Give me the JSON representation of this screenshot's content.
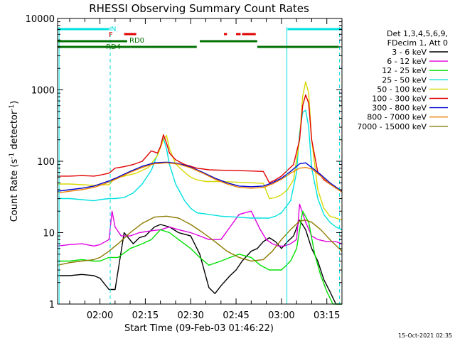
{
  "chart_data": {
    "type": "line",
    "title": "RHESSI Observing Summary Count Rates",
    "xlabel": "Start Time (09-Feb-03 01:46:22)",
    "ylabel": "Count Rate (s",
    "ylabel_sup": "-1",
    "ylabel_tail": " detector",
    "ylabel_sup2": "-1",
    "ylabel_close": ")",
    "yscale": "log",
    "ylim": [
      1,
      10000
    ],
    "xlim_minutes": [
      106,
      200
    ],
    "xticks": [
      {
        "minute": 120,
        "label": "02:00"
      },
      {
        "minute": 135,
        "label": "02:15"
      },
      {
        "minute": 150,
        "label": "02:30"
      },
      {
        "minute": 165,
        "label": "02:45"
      },
      {
        "minute": 180,
        "label": "03:00"
      },
      {
        "minute": 195,
        "label": "03:15"
      }
    ],
    "yticks": [
      {
        "value": 1,
        "label": "1"
      },
      {
        "value": 10,
        "label": "10"
      },
      {
        "value": 100,
        "label": "100"
      },
      {
        "value": 1000,
        "label": "1000"
      },
      {
        "value": 10000,
        "label": "10000"
      }
    ],
    "legend_header": [
      "Det 1,3,4,5,6,9,",
      "FDecim 1, Att 0"
    ],
    "legend_position": "right",
    "series": [
      {
        "name": "3 - 6 keV",
        "color": "#000000",
        "minutes": [
          106,
          110,
          114,
          118,
          120,
          123,
          125,
          128,
          131,
          133,
          135,
          138,
          140,
          143,
          146,
          150,
          153,
          156,
          158,
          160,
          163,
          165,
          167,
          170,
          172,
          174,
          176,
          178,
          180,
          182,
          184,
          186,
          188,
          190,
          192,
          194,
          196,
          198,
          200
        ],
        "values": [
          2.5,
          2.5,
          2.6,
          2.5,
          2.3,
          1.6,
          1.6,
          10.0,
          7.0,
          8.5,
          9.0,
          12.0,
          13.0,
          12.0,
          10.0,
          9.0,
          5.0,
          1.7,
          1.4,
          1.8,
          2.5,
          3.0,
          4.0,
          5.5,
          6.0,
          7.5,
          8.5,
          7.5,
          6.0,
          7.5,
          9.0,
          15.0,
          11.0,
          6.0,
          4.0,
          2.2,
          1.5,
          1.0,
          1.0
        ]
      },
      {
        "name": "6 - 12 keV",
        "color": "#e000e0",
        "minutes": [
          106,
          110,
          114,
          118,
          120,
          123,
          124,
          125,
          127,
          130,
          133,
          136,
          140,
          143,
          146,
          150,
          153,
          156,
          160,
          163,
          166,
          170,
          173,
          175,
          177,
          179,
          181,
          183,
          185,
          186,
          188,
          190,
          192,
          195,
          198,
          200
        ],
        "values": [
          6.5,
          6.8,
          7.0,
          6.5,
          6.8,
          8.0,
          20.0,
          12.0,
          9.0,
          9.0,
          10.0,
          10.5,
          11.0,
          12.0,
          11.0,
          10.0,
          9.0,
          8.0,
          8.0,
          12.0,
          18.0,
          20.0,
          11.0,
          8.0,
          7.0,
          6.5,
          6.5,
          7.0,
          8.0,
          25.0,
          14.0,
          9.0,
          8.0,
          7.5,
          7.5,
          7.0
        ]
      },
      {
        "name": "12 - 25 keV",
        "color": "#00e000",
        "minutes": [
          106,
          110,
          114,
          118,
          120,
          123,
          126,
          130,
          134,
          137,
          140,
          143,
          146,
          150,
          153,
          156,
          160,
          163,
          166,
          170,
          173,
          176,
          180,
          183,
          185,
          187,
          189,
          191,
          193,
          195,
          197,
          199,
          200
        ],
        "values": [
          4.0,
          4.0,
          4.2,
          4.0,
          4.0,
          4.5,
          4.5,
          6.0,
          7.0,
          8.0,
          11.0,
          10.0,
          8.0,
          6.0,
          4.5,
          3.5,
          4.0,
          4.5,
          5.0,
          4.5,
          3.5,
          3.0,
          3.0,
          4.0,
          6.0,
          20.0,
          14.0,
          5.0,
          2.5,
          1.5,
          1.0,
          1.0,
          1.0
        ]
      },
      {
        "name": "25 - 50 keV",
        "color": "#00e0e0",
        "minutes": [
          106,
          110,
          114,
          118,
          120,
          123,
          125,
          128,
          131,
          134,
          137,
          140,
          141,
          142,
          143,
          145,
          148,
          150,
          152,
          156,
          160,
          165,
          170,
          174,
          176,
          178,
          180,
          183,
          185,
          186,
          187,
          188,
          189,
          190,
          192,
          194,
          196,
          198,
          200
        ],
        "values": [
          30.0,
          30.0,
          29.0,
          28.0,
          29.0,
          30.0,
          30.0,
          31.0,
          36.0,
          48.0,
          75.0,
          160.0,
          210.0,
          150.0,
          90.0,
          48.0,
          28.0,
          22.0,
          19.0,
          18.0,
          17.0,
          16.5,
          16.0,
          16.0,
          16.0,
          17.0,
          19.0,
          28.0,
          70.0,
          250.0,
          480.0,
          520.0,
          300.0,
          80.0,
          30.0,
          18.0,
          14.0,
          12.0,
          11.0
        ]
      },
      {
        "name": "50 - 100 keV",
        "color": "#d8d800",
        "minutes": [
          106,
          110,
          114,
          118,
          120,
          123,
          125,
          128,
          132,
          136,
          139,
          141,
          142,
          143,
          145,
          148,
          150,
          152,
          155,
          160,
          165,
          170,
          174,
          176,
          178,
          180,
          182,
          184,
          186,
          187,
          188,
          189,
          190,
          192,
          194,
          196,
          198,
          200
        ],
        "values": [
          48.0,
          48.0,
          47.0,
          46.0,
          47.0,
          47.0,
          58.0,
          62.0,
          68.0,
          82.0,
          120.0,
          200.0,
          230.0,
          150.0,
          92.0,
          70.0,
          60.0,
          55.0,
          52.0,
          52.0,
          51.0,
          50.0,
          49.0,
          30.0,
          31.0,
          34.0,
          40.0,
          55.0,
          200.0,
          800.0,
          1300.0,
          900.0,
          200.0,
          40.0,
          22.0,
          17.0,
          16.0,
          15.0
        ]
      },
      {
        "name": "100 - 300 keV",
        "color": "#e00000",
        "minutes": [
          106,
          110,
          114,
          118,
          120,
          123,
          125,
          128,
          131,
          134,
          137,
          139,
          140,
          141,
          142,
          143,
          145,
          148,
          150,
          152,
          156,
          160,
          165,
          170,
          174,
          176,
          178,
          180,
          182,
          184,
          186,
          187,
          188,
          189,
          190,
          192,
          194,
          196,
          198,
          200
        ],
        "values": [
          62.0,
          62.0,
          63.0,
          62.0,
          64.0,
          68.0,
          80.0,
          84.0,
          90.0,
          100.0,
          140.0,
          130.0,
          160.0,
          235.0,
          180.0,
          130.0,
          105.0,
          90.0,
          85.0,
          80.0,
          76.0,
          75.0,
          74.0,
          73.0,
          72.0,
          50.0,
          55.0,
          62.0,
          75.0,
          90.0,
          200.0,
          600.0,
          850.0,
          650.0,
          200.0,
          70.0,
          55.0,
          48.0,
          42.0,
          38.0
        ]
      },
      {
        "name": "300 - 800 keV",
        "color": "#0000d0",
        "minutes": [
          106,
          110,
          114,
          118,
          120,
          123,
          126,
          130,
          134,
          138,
          142,
          146,
          150,
          154,
          158,
          162,
          166,
          170,
          174,
          177,
          180,
          183,
          186,
          188,
          190,
          193,
          196,
          200
        ],
        "values": [
          38.0,
          40.0,
          42.0,
          45.0,
          48.0,
          53.0,
          60.0,
          72.0,
          85.0,
          95.0,
          97.0,
          93.0,
          83.0,
          70.0,
          58.0,
          50.0,
          45.0,
          44.0,
          45.0,
          50.0,
          58.0,
          72.0,
          92.0,
          95.0,
          82.0,
          65.0,
          50.0,
          38.0
        ]
      },
      {
        "name": "800 - 7000 keV",
        "color": "#f08000",
        "minutes": [
          106,
          110,
          114,
          118,
          120,
          123,
          126,
          130,
          134,
          138,
          142,
          146,
          150,
          154,
          158,
          162,
          166,
          170,
          174,
          177,
          180,
          183,
          186,
          188,
          190,
          193,
          196,
          200
        ],
        "values": [
          36.0,
          38.0,
          40.0,
          43.0,
          46.0,
          51.0,
          58.0,
          70.0,
          82.0,
          92.0,
          95.0,
          91.0,
          81.0,
          68.0,
          56.0,
          48.0,
          43.0,
          42.0,
          43.0,
          48.0,
          56.0,
          68.0,
          80.0,
          82.0,
          78.0,
          62.0,
          48.0,
          37.0
        ]
      },
      {
        "name": "7000 - 15000 keV",
        "color": "#8c7a00",
        "minutes": [
          106,
          110,
          114,
          118,
          120,
          123,
          126,
          130,
          134,
          138,
          142,
          146,
          150,
          154,
          158,
          162,
          166,
          170,
          174,
          177,
          180,
          183,
          186,
          188,
          190,
          193,
          196,
          200
        ],
        "values": [
          3.5,
          3.8,
          4.0,
          4.2,
          4.5,
          5.5,
          7.0,
          10.0,
          13.5,
          16.5,
          17.0,
          16.0,
          13.0,
          10.0,
          7.5,
          5.5,
          4.5,
          4.0,
          4.2,
          5.5,
          8.0,
          11.0,
          14.5,
          15.0,
          14.0,
          11.0,
          8.0,
          5.5
        ]
      }
    ],
    "flags": [
      {
        "label": "N",
        "color": "#00e0e0",
        "bars": [
          [
            106,
            123
          ],
          [
            182,
            200
          ]
        ]
      },
      {
        "label": "F",
        "color": "#e00000",
        "bars": [
          [
            128,
            132
          ],
          [
            161,
            162
          ],
          [
            165,
            166.5
          ],
          [
            167,
            171.5
          ]
        ]
      },
      {
        "label": "RD0",
        "color": "#007000",
        "bars": [
          [
            106,
            129
          ],
          [
            153,
            172
          ]
        ]
      },
      {
        "label": "RD4",
        "color": "#007000",
        "bars": [
          [
            106,
            130
          ],
          [
            130,
            152
          ],
          [
            172,
            199
          ]
        ]
      }
    ],
    "vlines": [
      {
        "minute": 106.5,
        "style": "solid",
        "color": "#00e0e0"
      },
      {
        "minute": 123.4,
        "style": "dashed",
        "color": "#00e0e0"
      },
      {
        "minute": 181.8,
        "style": "solid",
        "color": "#00e0e0"
      },
      {
        "minute": 199.2,
        "style": "dashed",
        "color": "#00e0e0"
      }
    ],
    "grid": false
  },
  "timestamp": "15-Oct-2021 02:35"
}
